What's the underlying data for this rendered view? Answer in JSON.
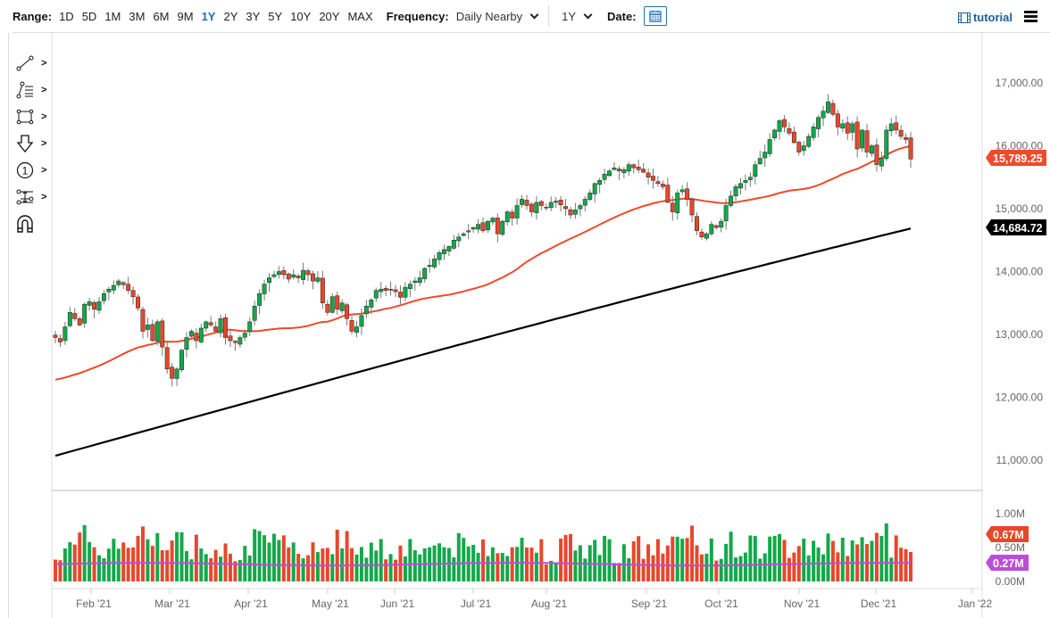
{
  "toolbar": {
    "range_label": "Range:",
    "ranges": [
      "1D",
      "5D",
      "1M",
      "3M",
      "6M",
      "9M",
      "1Y",
      "2Y",
      "3Y",
      "5Y",
      "10Y",
      "20Y",
      "MAX"
    ],
    "active_range": "1Y",
    "frequency_label": "Frequency:",
    "frequency_value": "Daily Nearby",
    "period_value": "1Y",
    "date_label": "Date:",
    "tutorial_label": "tutorial"
  },
  "drawing_tools": [
    {
      "name": "trendline-tool",
      "icon": "line-icon",
      "has_submenu": true
    },
    {
      "name": "fibonacci-tool",
      "icon": "fib-list-icon",
      "has_submenu": true
    },
    {
      "name": "shape-tool",
      "icon": "rectangle-icon",
      "has_submenu": true
    },
    {
      "name": "arrow-tool",
      "icon": "down-arrow-icon",
      "has_submenu": true
    },
    {
      "name": "annotation-tool",
      "icon": "numbered-circle-icon",
      "has_submenu": true
    },
    {
      "name": "measure-tool",
      "icon": "measure-icon",
      "has_submenu": true
    },
    {
      "name": "magnet-tool",
      "icon": "magnet-icon",
      "has_submenu": false
    }
  ],
  "colors": {
    "up": "#13a84a",
    "down": "#e8472a",
    "ma50": "#ef4a2c",
    "ma200": "#000000",
    "vol_ma": "#b94fd6",
    "accent": "#1a6fc4"
  },
  "chart_data": {
    "type": "candlestick",
    "title": "",
    "xlabel": "",
    "ylabel": "",
    "price_axis": {
      "ticks": [
        "17,000.00",
        "16,000.00",
        "15,000.00",
        "14,000.00",
        "13,000.00",
        "12,000.00",
        "11,000.00"
      ],
      "ylim": [
        10800,
        17400
      ]
    },
    "volume_axis": {
      "ticks": [
        "1.00M",
        "0.50M",
        "0.00M"
      ],
      "ylim": [
        0,
        1.05
      ]
    },
    "x_ticks": [
      "Feb '21",
      "Mar '21",
      "Apr '21",
      "May '21",
      "Jun '21",
      "Jul '21",
      "Aug '21",
      "Sep '21",
      "Oct '21",
      "Nov '21",
      "Dec '21",
      "Jan '22"
    ],
    "last_price_label": "15,789.25",
    "ma200_label": "14,684.72",
    "last_volume_label": "0.67M",
    "volume_ma_label": "0.27M",
    "closes": [
      12950,
      12880,
      13120,
      13350,
      13250,
      13150,
      13480,
      13520,
      13400,
      13520,
      13650,
      13720,
      13780,
      13850,
      13790,
      13700,
      13600,
      13420,
      13050,
      13150,
      12900,
      13200,
      12800,
      12450,
      12300,
      12450,
      12750,
      12950,
      13050,
      12900,
      13100,
      13200,
      13150,
      13050,
      13250,
      12950,
      12900,
      12870,
      12950,
      13020,
      13200,
      13450,
      13650,
      13800,
      13900,
      13950,
      14000,
      13950,
      13880,
      13950,
      13900,
      14020,
      13950,
      13850,
      13900,
      13500,
      13350,
      13600,
      13400,
      13500,
      13250,
      13050,
      13120,
      13300,
      13450,
      13550,
      13700,
      13720,
      13700,
      13720,
      13680,
      13590,
      13750,
      13800,
      13850,
      13900,
      14050,
      14100,
      14200,
      14300,
      14350,
      14400,
      14500,
      14550,
      14600,
      14650,
      14700,
      14750,
      14650,
      14800,
      14850,
      14600,
      14800,
      14950,
      14850,
      15050,
      15150,
      15050,
      14950,
      15100,
      15050,
      15020,
      15100,
      15120,
      15060,
      15000,
      14900,
      14980,
      15050,
      15150,
      15250,
      15400,
      15450,
      15550,
      15600,
      15650,
      15600,
      15620,
      15700,
      15650,
      15620,
      15580,
      15500,
      15450,
      15400,
      15350,
      15100,
      14950,
      15250,
      15300,
      15150,
      14900,
      14650,
      14550,
      14600,
      14750,
      14700,
      14800,
      15050,
      15200,
      15350,
      15400,
      15450,
      15500,
      15700,
      15800,
      15900,
      16100,
      16250,
      16400,
      16300,
      16200,
      16050,
      15900,
      16000,
      16150,
      16300,
      16450,
      16550,
      16700,
      16500,
      16300,
      16350,
      16200,
      16350,
      15950,
      16250,
      15900,
      16000,
      15700,
      15800,
      16250,
      16350,
      16250,
      16150,
      16100,
      15789
    ]
  }
}
